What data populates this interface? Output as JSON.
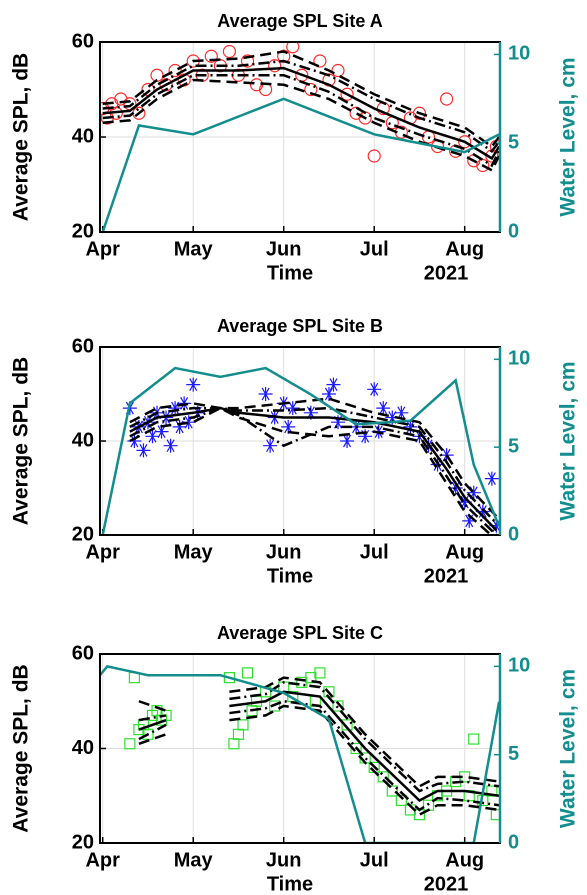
{
  "chart_data": [
    {
      "type": "line",
      "title": "Average SPL Site A",
      "ylabel": "Average SPL, dB",
      "y2label": "Water Level, cm",
      "xlabel": "Time",
      "xlabel_year": "2021",
      "xlim": [
        3.97,
        8.39
      ],
      "xticks": [
        {
          "value": 4,
          "label": "Apr"
        },
        {
          "value": 5,
          "label": "May"
        },
        {
          "value": 6,
          "label": "Jun"
        },
        {
          "value": 7,
          "label": "Jul"
        },
        {
          "value": 8,
          "label": "Aug"
        }
      ],
      "ylim": [
        20,
        60
      ],
      "yticks": [
        20,
        40,
        60
      ],
      "y2lim": [
        0,
        10.7
      ],
      "y2ticks": [
        0,
        5,
        10
      ],
      "grid": true,
      "series": [
        {
          "marker": "circle",
          "color": "#ff2a2a",
          "x": [
            4.0,
            4.05,
            4.1,
            4.15,
            4.2,
            4.3,
            4.4,
            4.5,
            4.6,
            4.7,
            4.8,
            4.9,
            5.0,
            5.1,
            5.2,
            5.3,
            5.4,
            5.5,
            5.6,
            5.7,
            5.8,
            5.9,
            6.0,
            6.1,
            6.2,
            6.3,
            6.4,
            6.5,
            6.6,
            6.7,
            6.8,
            6.9,
            7.0,
            7.1,
            7.2,
            7.3,
            7.4,
            7.5,
            7.6,
            7.7,
            7.8,
            7.9,
            8.0,
            8.1,
            8.2,
            8.3,
            8.35
          ],
          "values": [
            46,
            44,
            47,
            45,
            48,
            47,
            45,
            50,
            53,
            51,
            54,
            52,
            56,
            53,
            57,
            55,
            58,
            53,
            56,
            51,
            50,
            55,
            57,
            59,
            53,
            50,
            56,
            52,
            54,
            49,
            45,
            44,
            36,
            46,
            43,
            41,
            44,
            45,
            40,
            38,
            48,
            37,
            39,
            35,
            34,
            36,
            38
          ]
        },
        {
          "line": "solid",
          "color": "#000000",
          "x": [
            4.0,
            4.3,
            4.6,
            5.0,
            5.5,
            6.0,
            6.5,
            7.0,
            7.5,
            8.0,
            8.3,
            8.38
          ],
          "values": [
            45,
            45.5,
            50,
            54,
            54,
            54.5,
            51,
            46,
            42,
            39,
            35.5,
            38
          ]
        },
        {
          "line": "dashed",
          "color": "#000000",
          "x": [
            4.0,
            4.3,
            4.6,
            5.0,
            5.5,
            6.0,
            6.5,
            7.0,
            7.5,
            8.0,
            8.3,
            8.38
          ],
          "values": [
            47,
            47.5,
            52,
            56,
            56.5,
            58,
            54,
            49,
            45,
            42,
            38,
            40
          ]
        },
        {
          "line": "dashed",
          "color": "#000000",
          "x": [
            4.0,
            4.3,
            4.6,
            5.0,
            5.5,
            6.0,
            6.5,
            7.0,
            7.5,
            8.0,
            8.3,
            8.38
          ],
          "values": [
            43,
            43.5,
            48,
            52,
            51.5,
            51,
            48,
            43,
            39,
            36,
            33,
            36
          ]
        },
        {
          "line": "dashdot",
          "color": "#000000",
          "x": [
            4.0,
            4.3,
            4.6,
            5.0,
            5.5,
            6.0,
            6.5,
            7.0,
            7.5,
            8.0,
            8.3,
            8.38
          ],
          "values": [
            46,
            46.5,
            51,
            55,
            55,
            56,
            53,
            48,
            44,
            41,
            37,
            39
          ]
        },
        {
          "line": "dashdot",
          "color": "#000000",
          "x": [
            4.0,
            4.3,
            4.6,
            5.0,
            5.5,
            6.0,
            6.5,
            7.0,
            7.5,
            8.0,
            8.3,
            8.38
          ],
          "values": [
            44,
            44.5,
            49,
            53,
            53,
            53,
            49.5,
            44,
            40.5,
            37.5,
            34,
            37
          ]
        },
        {
          "line": "solid",
          "axis": "y2",
          "color": "#138d8d",
          "x": [
            4.0,
            4.4,
            5.0,
            6.0,
            7.0,
            8.0,
            8.38
          ],
          "values": [
            0,
            6,
            5.5,
            7.5,
            5.5,
            4.5,
            5.5
          ]
        }
      ]
    },
    {
      "type": "line",
      "title": "Average SPL Site B",
      "ylabel": "Average SPL, dB",
      "y2label": "Water Level, cm",
      "xlabel": "Time",
      "xlabel_year": "2021",
      "xlim": [
        3.97,
        8.39
      ],
      "xticks": [
        {
          "value": 4,
          "label": "Apr"
        },
        {
          "value": 5,
          "label": "May"
        },
        {
          "value": 6,
          "label": "Jun"
        },
        {
          "value": 7,
          "label": "Jul"
        },
        {
          "value": 8,
          "label": "Aug"
        }
      ],
      "ylim": [
        20,
        60
      ],
      "yticks": [
        20,
        40,
        60
      ],
      "y2lim": [
        0,
        10.7
      ],
      "y2ticks": [
        0,
        5,
        10
      ],
      "grid": true,
      "series": [
        {
          "marker": "star",
          "color": "#1a1aff",
          "x": [
            4.3,
            4.35,
            4.4,
            4.45,
            4.5,
            4.55,
            4.6,
            4.65,
            4.7,
            4.75,
            4.8,
            4.85,
            4.9,
            4.95,
            5.0,
            5.05,
            5.8,
            5.85,
            5.9,
            6.0,
            6.05,
            6.1,
            6.3,
            6.5,
            6.55,
            6.6,
            6.7,
            6.8,
            6.9,
            7.0,
            7.05,
            7.1,
            7.2,
            7.3,
            7.4,
            7.5,
            7.6,
            7.7,
            7.8,
            7.9,
            8.0,
            8.05,
            8.1,
            8.2,
            8.3,
            8.35
          ],
          "values": [
            47,
            40,
            43,
            38,
            44,
            41,
            46,
            42,
            45,
            39,
            47,
            43,
            48,
            44,
            52,
            46,
            50,
            39,
            45,
            48,
            43,
            47,
            46,
            50,
            52,
            44,
            40,
            43,
            41,
            51,
            42,
            47,
            45,
            46,
            43,
            41,
            39,
            35,
            37,
            30,
            27,
            23,
            29,
            25,
            32,
            22
          ]
        },
        {
          "line": "solid",
          "color": "#000000",
          "x": [
            4.3,
            4.6,
            5.0,
            5.3,
            5.5,
            6.0,
            6.5,
            7.0,
            7.5,
            7.8,
            8.0,
            8.35
          ],
          "values": [
            42,
            45,
            46,
            47,
            46,
            45,
            45,
            44,
            42,
            34,
            28,
            21
          ]
        },
        {
          "line": "dashed",
          "color": "#000000",
          "x": [
            4.3,
            4.6,
            5.0,
            5.3,
            5.5,
            6.0,
            6.5,
            7.0,
            7.5,
            7.8,
            8.0,
            8.35
          ],
          "values": [
            44,
            47,
            48,
            47,
            47,
            48,
            49,
            46,
            44,
            37,
            31,
            24
          ]
        },
        {
          "line": "dashed",
          "color": "#000000",
          "x": [
            4.3,
            4.6,
            5.0,
            5.3,
            5.5,
            6.0,
            6.5,
            7.0,
            7.5,
            7.8,
            8.0,
            8.35
          ],
          "values": [
            40,
            43,
            44,
            47,
            45,
            42,
            41,
            42,
            40,
            31,
            25,
            19
          ]
        },
        {
          "line": "dashdot",
          "color": "#000000",
          "x": [
            4.3,
            4.6,
            5.0,
            5.3,
            5.5,
            6.0,
            6.5,
            7.0,
            7.5,
            7.8,
            8.0,
            8.35
          ],
          "values": [
            43,
            46,
            47,
            47,
            46.5,
            46.5,
            47,
            45,
            43,
            35.5,
            29.5,
            22.5
          ]
        },
        {
          "line": "dashdot",
          "color": "#000000",
          "x": [
            4.3,
            4.6,
            5.0,
            5.3,
            5.5,
            6.0,
            6.5,
            7.0,
            7.5,
            7.8,
            8.0,
            8.35
          ],
          "values": [
            41,
            44,
            45,
            47,
            45.5,
            39,
            43,
            43,
            41,
            32.5,
            26.5,
            20
          ]
        },
        {
          "line": "solid",
          "axis": "y2",
          "color": "#138d8d",
          "x": [
            4.0,
            4.3,
            4.8,
            5.3,
            5.8,
            6.3,
            6.8,
            7.4,
            7.9,
            8.1,
            8.38
          ],
          "values": [
            0,
            7.5,
            9.5,
            9,
            9.5,
            8,
            6.3,
            6.5,
            8.8,
            4,
            0.5
          ]
        }
      ]
    },
    {
      "type": "line",
      "title": "Average SPL Site C",
      "ylabel": "Average SPL, dB",
      "y2label": "Water Level, cm",
      "xlabel": "Time",
      "xlabel_year": "2021",
      "xlim": [
        3.97,
        8.39
      ],
      "xticks": [
        {
          "value": 4,
          "label": "Apr"
        },
        {
          "value": 5,
          "label": "May"
        },
        {
          "value": 6,
          "label": "Jun"
        },
        {
          "value": 7,
          "label": "Jul"
        },
        {
          "value": 8,
          "label": "Aug"
        }
      ],
      "ylim": [
        20,
        60
      ],
      "yticks": [
        20,
        40,
        60
      ],
      "y2lim": [
        0,
        10.7
      ],
      "y2ticks": [
        0,
        5,
        10
      ],
      "grid": true,
      "series": [
        {
          "marker": "square",
          "color": "#2ee02e",
          "x": [
            4.3,
            4.35,
            4.4,
            4.45,
            4.5,
            4.55,
            4.6,
            4.65,
            4.7,
            5.4,
            5.45,
            5.5,
            5.55,
            5.6,
            5.65,
            5.7,
            5.8,
            5.9,
            6.0,
            6.1,
            6.2,
            6.3,
            6.35,
            6.4,
            6.5,
            6.6,
            6.7,
            6.8,
            6.9,
            7.0,
            7.1,
            7.2,
            7.3,
            7.4,
            7.5,
            7.6,
            7.7,
            7.8,
            7.9,
            8.0,
            8.05,
            8.1,
            8.2,
            8.3,
            8.35
          ],
          "values": [
            41,
            55,
            44,
            45,
            43,
            47,
            48,
            46,
            47,
            55,
            41,
            43,
            45,
            56,
            48,
            50,
            52,
            49,
            53,
            51,
            54,
            55,
            50,
            56,
            52,
            49,
            45,
            40,
            38,
            36,
            34,
            31,
            29,
            27,
            26,
            28,
            30,
            31,
            33,
            34,
            30,
            42,
            29,
            31,
            26
          ]
        },
        {
          "line": "solid",
          "color": "#000000",
          "x": [
            4.4,
            4.7,
            4.8,
            5.4,
            5.8,
            6.0,
            6.4,
            6.9,
            7.5,
            7.7,
            8.0,
            8.38
          ],
          "values": [
            44,
            46,
            null,
            49,
            50,
            52,
            51,
            40,
            29,
            31,
            31,
            30
          ]
        },
        {
          "line": "dashed",
          "color": "#000000",
          "x": [
            4.4,
            4.7,
            4.8,
            5.4,
            5.8,
            6.0,
            6.4,
            6.9,
            7.5,
            7.7,
            8.0,
            8.38
          ],
          "values": [
            41,
            43,
            null,
            46,
            47,
            49,
            48,
            37,
            26,
            28,
            28,
            27
          ]
        },
        {
          "line": "dashed",
          "color": "#000000",
          "x": [
            4.4,
            4.7,
            4.8,
            5.4,
            5.8,
            6.0,
            6.4,
            6.9,
            7.5,
            7.7,
            8.0,
            8.38
          ],
          "values": [
            50,
            48,
            null,
            52,
            53,
            55,
            54,
            43,
            32,
            34,
            34,
            33
          ]
        },
        {
          "line": "dashdot",
          "color": "#000000",
          "x": [
            4.4,
            4.7,
            4.8,
            5.4,
            5.8,
            6.0,
            6.4,
            6.9,
            7.5,
            7.7,
            8.0,
            8.38
          ],
          "values": [
            42,
            45,
            null,
            47.5,
            48.5,
            50,
            49,
            38,
            27,
            29.5,
            29,
            28
          ]
        },
        {
          "line": "dashdot",
          "color": "#000000",
          "x": [
            4.4,
            4.7,
            4.8,
            5.4,
            5.8,
            6.0,
            6.4,
            6.9,
            7.5,
            7.7,
            8.0,
            8.38
          ],
          "values": [
            46,
            47,
            null,
            50.5,
            51.5,
            54,
            53,
            42,
            31,
            32.5,
            33,
            32
          ]
        },
        {
          "line": "solid",
          "axis": "y2",
          "color": "#138d8d",
          "x": [
            3.97,
            4.05,
            4.5,
            5.3,
            6.0,
            6.5,
            6.9,
            7.9,
            8.1,
            8.38
          ],
          "values": [
            9.5,
            10,
            9.5,
            9.5,
            8.5,
            7,
            0,
            0,
            0,
            8
          ]
        }
      ]
    }
  ]
}
